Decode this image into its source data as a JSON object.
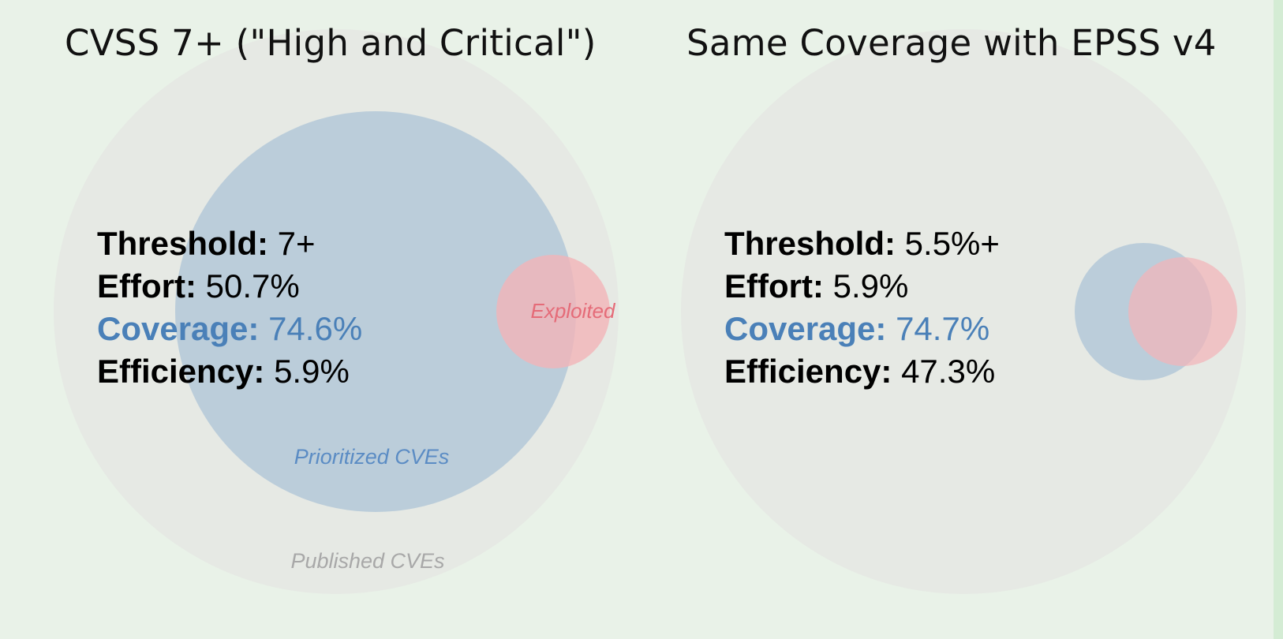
{
  "panels": [
    {
      "title": "CVSS 7+ (\"High and Critical\")",
      "labels": {
        "published": "Published CVEs",
        "prioritized": "Prioritized CVEs",
        "exploited": "Exploited"
      },
      "stats": [
        {
          "key": "Threshold:",
          "value": " 7+"
        },
        {
          "key": "Effort:",
          "value": " 50.7%"
        },
        {
          "key": "Coverage:",
          "value": " 74.6%"
        },
        {
          "key": "Efficiency:",
          "value": " 5.9%"
        }
      ]
    },
    {
      "title": "Same Coverage with EPSS v4",
      "stats": [
        {
          "key": "Threshold:",
          "value": " 5.5%+"
        },
        {
          "key": "Effort:",
          "value": " 5.9%"
        },
        {
          "key": "Coverage:",
          "value": " 74.7%"
        },
        {
          "key": "Efficiency:",
          "value": " 47.3%"
        }
      ]
    }
  ],
  "colors": {
    "background": "#e9f2e8",
    "published": "#e5e8e3",
    "prioritized": "#b3c8d8",
    "exploited": "#f2b4b8",
    "coverage_text": "#4a80b8",
    "exploited_text": "#e56b78",
    "prioritized_text": "#5b8cc4",
    "published_text": "#a8a8a8"
  }
}
